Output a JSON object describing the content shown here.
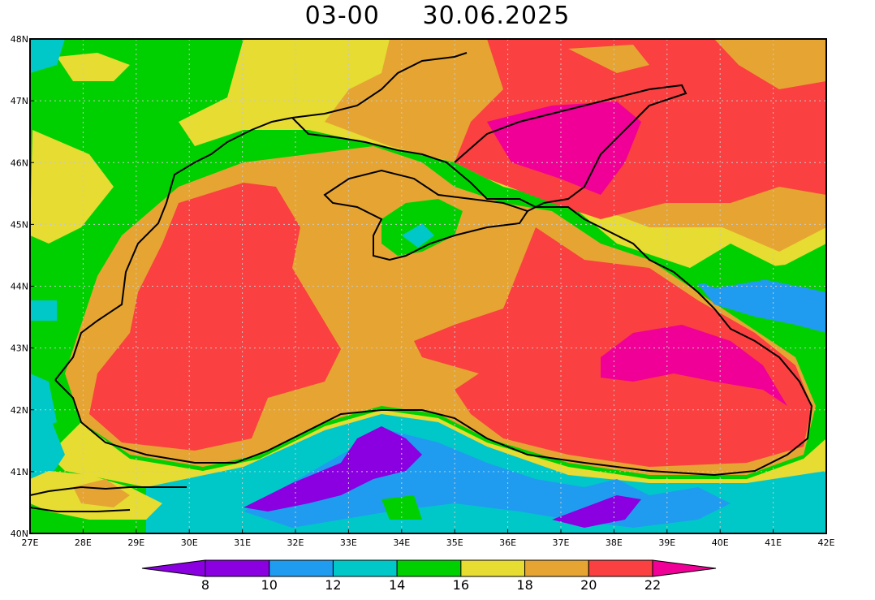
{
  "header": {
    "time_label": "03-00",
    "date_label": "30.06.2025"
  },
  "map": {
    "lon_min": 27,
    "lon_max": 42,
    "lat_min": 40,
    "lat_max": 48,
    "lon_ticks": [
      "27E",
      "28E",
      "29E",
      "30E",
      "31E",
      "32E",
      "33E",
      "34E",
      "35E",
      "36E",
      "37E",
      "38E",
      "39E",
      "40E",
      "41E",
      "42E"
    ],
    "lat_ticks": [
      "40N",
      "41N",
      "42N",
      "43N",
      "44N",
      "45N",
      "46N",
      "47N",
      "48N"
    ]
  },
  "colorbar": {
    "levels": [
      "8",
      "10",
      "12",
      "14",
      "16",
      "18",
      "20",
      "22"
    ],
    "colors": [
      "#8a00e0",
      "#8a00e0",
      "#1f9cf0",
      "#00c8c8",
      "#00d000",
      "#e6dc32",
      "#e6a532",
      "#fa4040",
      "#f00096"
    ]
  }
}
